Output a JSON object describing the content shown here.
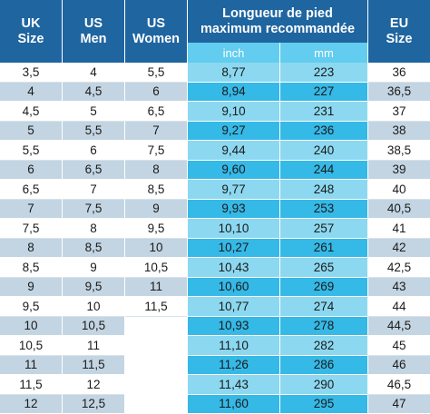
{
  "headers": {
    "uk": [
      "UK",
      "Size"
    ],
    "us_men": [
      "US",
      "Men"
    ],
    "us_women": [
      "US",
      "Women"
    ],
    "foot_length": [
      "Longueur de pied",
      "maximum recommandée"
    ],
    "inch": "inch",
    "mm": "mm",
    "eu": [
      "EU",
      "Size"
    ]
  },
  "rows": [
    {
      "uk": "3,5",
      "men": "4",
      "women": "5,5",
      "inch": "8,77",
      "mm": "223",
      "eu": "36"
    },
    {
      "uk": "4",
      "men": "4,5",
      "women": "6",
      "inch": "8,94",
      "mm": "227",
      "eu": "36,5"
    },
    {
      "uk": "4,5",
      "men": "5",
      "women": "6,5",
      "inch": "9,10",
      "mm": "231",
      "eu": "37"
    },
    {
      "uk": "5",
      "men": "5,5",
      "women": "7",
      "inch": "9,27",
      "mm": "236",
      "eu": "38"
    },
    {
      "uk": "5,5",
      "men": "6",
      "women": "7,5",
      "inch": "9,44",
      "mm": "240",
      "eu": "38,5"
    },
    {
      "uk": "6",
      "men": "6,5",
      "women": "8",
      "inch": "9,60",
      "mm": "244",
      "eu": "39"
    },
    {
      "uk": "6,5",
      "men": "7",
      "women": "8,5",
      "inch": "9,77",
      "mm": "248",
      "eu": "40"
    },
    {
      "uk": "7",
      "men": "7,5",
      "women": "9",
      "inch": "9,93",
      "mm": "253",
      "eu": "40,5"
    },
    {
      "uk": "7,5",
      "men": "8",
      "women": "9,5",
      "inch": "10,10",
      "mm": "257",
      "eu": "41"
    },
    {
      "uk": "8",
      "men": "8,5",
      "women": "10",
      "inch": "10,27",
      "mm": "261",
      "eu": "42"
    },
    {
      "uk": "8,5",
      "men": "9",
      "women": "10,5",
      "inch": "10,43",
      "mm": "265",
      "eu": "42,5"
    },
    {
      "uk": "9",
      "men": "9,5",
      "women": "11",
      "inch": "10,60",
      "mm": "269",
      "eu": "43"
    },
    {
      "uk": "9,5",
      "men": "10",
      "women": "11,5",
      "inch": "10,77",
      "mm": "274",
      "eu": "44"
    },
    {
      "uk": "10",
      "men": "10,5",
      "women": "",
      "inch": "10,93",
      "mm": "278",
      "eu": "44,5"
    },
    {
      "uk": "10,5",
      "men": "11",
      "women": "",
      "inch": "11,10",
      "mm": "282",
      "eu": "45"
    },
    {
      "uk": "11",
      "men": "11,5",
      "women": "",
      "inch": "11,26",
      "mm": "286",
      "eu": "46"
    },
    {
      "uk": "11,5",
      "men": "12",
      "women": "",
      "inch": "11,43",
      "mm": "290",
      "eu": "46,5"
    },
    {
      "uk": "12",
      "men": "12,5",
      "women": "",
      "inch": "11,60",
      "mm": "295",
      "eu": "47"
    }
  ],
  "colors": {
    "header_bg": "#1f65a0",
    "subheader_bg": "#62cdee",
    "row_alt_bg": "#c3d5e2",
    "cyan_dark": "#35b9e7",
    "cyan_light": "#8cd8f0"
  }
}
